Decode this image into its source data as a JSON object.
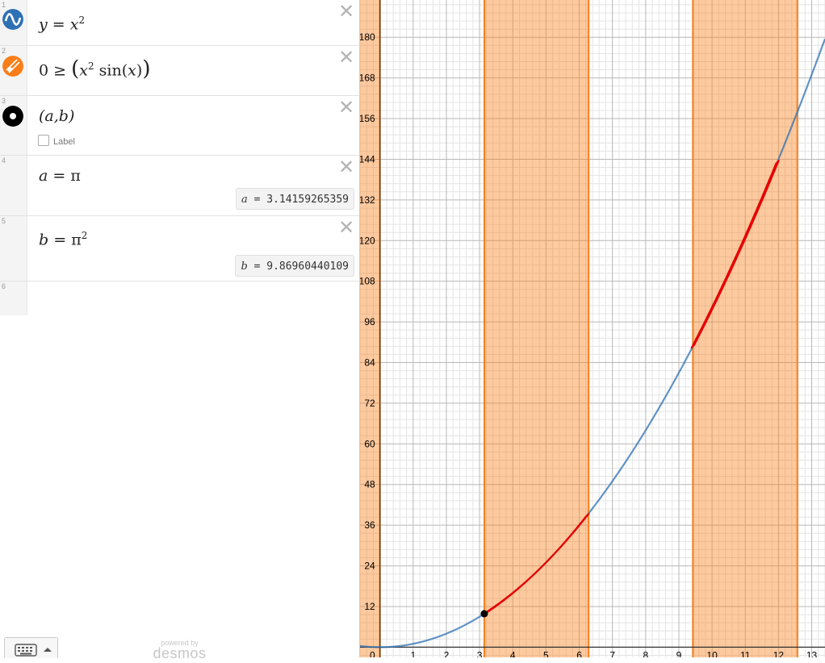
{
  "expressions": [
    {
      "index": "1",
      "icon": "curve-icon",
      "color": "#2d70b3",
      "lhs": "y",
      "rhs": "x",
      "exp": "2"
    },
    {
      "index": "2",
      "icon": "inequality-icon",
      "color": "#fa7e19",
      "left": "0 ≥",
      "base": "x",
      "exp": "2",
      "fn": "sin",
      "arg": "x"
    },
    {
      "index": "3",
      "icon": "point-icon",
      "color": "#000000",
      "point": "(a,b)",
      "label_option": "Label"
    },
    {
      "index": "4",
      "lhs": "a",
      "rhs": "π",
      "eval_var": "a",
      "eval_value": "3.14159265359"
    },
    {
      "index": "5",
      "lhs": "b",
      "rhs": "π",
      "exp": "2",
      "eval_var": "b",
      "eval_value": "9.86960440109"
    },
    {
      "index": "6"
    }
  ],
  "delete_glyph": "✕",
  "equals": "=",
  "footer": {
    "powered_by": "powered by",
    "brand": "desmos"
  },
  "graph": {
    "x_range": [
      -0.6,
      13.4
    ],
    "y_range": [
      -3,
      191
    ],
    "x_ticks": [
      "0",
      "1",
      "2",
      "3",
      "4",
      "5",
      "6",
      "7",
      "8",
      "9",
      "10",
      "11",
      "12",
      "13"
    ],
    "y_ticks": [
      "12",
      "24",
      "36",
      "48",
      "60",
      "72",
      "84",
      "96",
      "108",
      "120",
      "132",
      "144",
      "156",
      "168",
      "180"
    ],
    "shaded_intervals": [
      [
        -0.6,
        0
      ],
      [
        3.14159,
        6.28319
      ],
      [
        9.42478,
        12.56637
      ]
    ],
    "curve_color": "#2d70b3",
    "shade_color": "#fa7e19",
    "highlight_color": "#e60000",
    "highlight_intervals": [
      [
        3.2,
        6.28
      ],
      [
        9.42,
        12.0
      ]
    ],
    "point": {
      "x": 3.14159265359,
      "y": 9.86960440109
    }
  }
}
